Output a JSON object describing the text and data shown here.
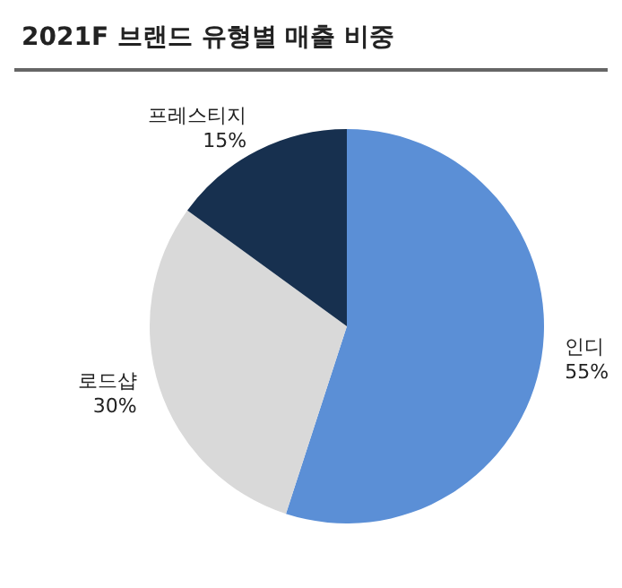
{
  "chart_data": {
    "type": "pie",
    "title": "2021F 브랜드 유형별 매출 비중",
    "categories": [
      "인디",
      "로드샵",
      "프레스티지"
    ],
    "values": [
      55,
      30,
      15
    ],
    "value_labels": [
      "55%",
      "30%",
      "15%"
    ],
    "colors": [
      "#5b8fd6",
      "#d9d9d9",
      "#17304f"
    ],
    "legend": false
  }
}
